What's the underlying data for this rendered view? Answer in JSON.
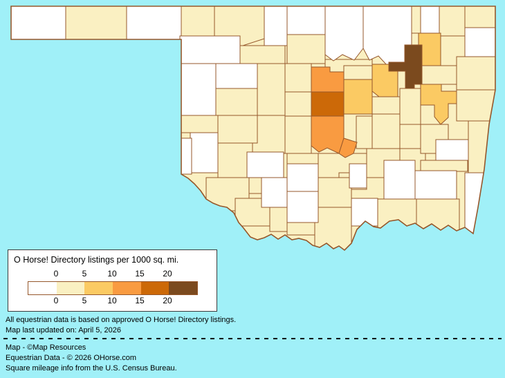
{
  "background_color": "#A0F0F8",
  "legend": {
    "title": "O Horse! Directory listings per 1000 sq. mi.",
    "ticks_top": [
      "0",
      "5",
      "10",
      "15",
      "20"
    ],
    "ticks_bottom": [
      "0",
      "5",
      "10",
      "15",
      "20"
    ],
    "box_background": "#FFFFFF"
  },
  "footer": {
    "note1": "All equestrian data is based on approved O Horse! Directory listings.",
    "note2": "Map last updated on: April 5, 2026",
    "credit1": "Map - ©Map Resources",
    "credit2": "Equestrian Data - © 2026 OHorse.com",
    "credit3": "Square mileage info from the U.S. Census Bureau."
  },
  "chart_data": {
    "type": "choropleth-map",
    "title": "O Horse! Directory listings per 1000 sq. mi.",
    "region": "Oklahoma counties",
    "thresholds": [
      0,
      5,
      10,
      15,
      20
    ],
    "legend_position": "bottom-left"
  },
  "map": {
    "border_color": "#96572B",
    "palette": [
      "#FFFFFF",
      "#FAF0C2",
      "#FBCA63",
      "#F99B41",
      "#CC6908",
      "#7B4A1E"
    ],
    "regions": [
      {
        "id": "c01",
        "bucket": 1
      },
      {
        "id": "c02",
        "bucket": 1
      },
      {
        "id": "c03",
        "bucket": 1
      },
      {
        "id": "c04",
        "bucket": 1
      },
      {
        "id": "c05",
        "bucket": 1
      },
      {
        "id": "c06",
        "bucket": 1
      },
      {
        "id": "c07",
        "bucket": 1
      },
      {
        "id": "c08",
        "bucket": 1
      },
      {
        "id": "c09",
        "bucket": 1
      },
      {
        "id": "c10",
        "bucket": 1
      },
      {
        "id": "c11",
        "bucket": 1
      },
      {
        "id": "c12",
        "bucket": 1
      },
      {
        "id": "c13",
        "bucket": 1
      },
      {
        "id": "c14",
        "bucket": 1
      },
      {
        "id": "c15",
        "bucket": 1
      },
      {
        "id": "c16",
        "bucket": 1
      },
      {
        "id": "c17",
        "bucket": 1
      },
      {
        "id": "c18",
        "bucket": 1
      },
      {
        "id": "c19",
        "bucket": 1
      },
      {
        "id": "c20",
        "bucket": 1
      },
      {
        "id": "c21",
        "bucket": 1
      },
      {
        "id": "c22",
        "bucket": 1
      },
      {
        "id": "c23",
        "bucket": 1
      },
      {
        "id": "c24",
        "bucket": 1
      },
      {
        "id": "c25",
        "bucket": 1
      },
      {
        "id": "c26",
        "bucket": 1
      },
      {
        "id": "c27",
        "bucket": 1
      },
      {
        "id": "c28",
        "bucket": 1
      },
      {
        "id": "c29",
        "bucket": 1
      },
      {
        "id": "c30",
        "bucket": 1
      },
      {
        "id": "c31",
        "bucket": 1
      },
      {
        "id": "c32",
        "bucket": 1
      },
      {
        "id": "c33",
        "bucket": 1
      },
      {
        "id": "c34",
        "bucket": 1
      },
      {
        "id": "c35",
        "bucket": 1
      },
      {
        "id": "c36",
        "bucket": 1
      },
      {
        "id": "c37",
        "bucket": 1
      },
      {
        "id": "c38",
        "bucket": 1
      },
      {
        "id": "c39",
        "bucket": 1
      },
      {
        "id": "c40",
        "bucket": 1
      },
      {
        "id": "c41",
        "bucket": 1
      },
      {
        "id": "c42",
        "bucket": 1
      },
      {
        "id": "c44",
        "bucket": 1
      },
      {
        "id": "c45",
        "bucket": 1
      },
      {
        "id": "c46",
        "bucket": 1
      },
      {
        "id": "w01",
        "bucket": 0
      },
      {
        "id": "w02",
        "bucket": 0
      },
      {
        "id": "w03",
        "bucket": 0
      },
      {
        "id": "w04",
        "bucket": 0
      },
      {
        "id": "w05",
        "bucket": 0
      },
      {
        "id": "w06",
        "bucket": 0
      },
      {
        "id": "w07",
        "bucket": 0
      },
      {
        "id": "w08",
        "bucket": 0
      },
      {
        "id": "w09",
        "bucket": 0
      },
      {
        "id": "w10",
        "bucket": 0
      },
      {
        "id": "w11",
        "bucket": 0
      },
      {
        "id": "w12",
        "bucket": 0
      },
      {
        "id": "w13",
        "bucket": 0
      },
      {
        "id": "w14",
        "bucket": 0
      },
      {
        "id": "w15",
        "bucket": 0
      },
      {
        "id": "w16",
        "bucket": 0
      },
      {
        "id": "w17",
        "bucket": 0
      },
      {
        "id": "w18",
        "bucket": 0
      },
      {
        "id": "w19",
        "bucket": 0
      },
      {
        "id": "w20",
        "bucket": 0
      },
      {
        "id": "w21",
        "bucket": 0
      },
      {
        "id": "w22",
        "bucket": 0
      },
      {
        "id": "w23",
        "bucket": 0
      },
      {
        "id": "g01",
        "bucket": 2
      },
      {
        "id": "g02",
        "bucket": 2
      },
      {
        "id": "g03",
        "bucket": 2
      },
      {
        "id": "g04",
        "bucket": 2
      },
      {
        "id": "o01",
        "bucket": 3
      },
      {
        "id": "o02",
        "bucket": 3
      },
      {
        "id": "o03",
        "bucket": 3
      },
      {
        "id": "d01",
        "bucket": 4
      },
      {
        "id": "b01",
        "bucket": 5
      }
    ]
  }
}
